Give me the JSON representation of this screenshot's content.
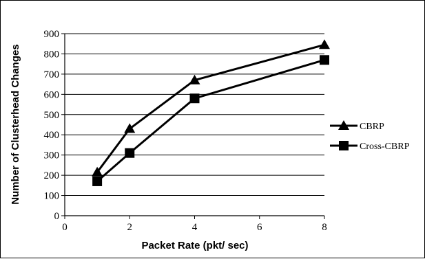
{
  "chart_data": {
    "type": "line",
    "xlabel": "Packet Rate (pkt/ sec)",
    "ylabel": "Number of Clusterhead Changes",
    "xlim": [
      0,
      8
    ],
    "ylim": [
      0,
      900
    ],
    "xticks": [
      0,
      2,
      4,
      6,
      8
    ],
    "yticks": [
      0,
      100,
      200,
      300,
      400,
      500,
      600,
      700,
      800,
      900
    ],
    "grid": "horizontal",
    "legend_position": "right",
    "series": [
      {
        "name": "CBRP",
        "marker": "triangle",
        "color": "#000000",
        "points": [
          {
            "x": 1,
            "y": 215
          },
          {
            "x": 2,
            "y": 430
          },
          {
            "x": 4,
            "y": 670
          },
          {
            "x": 8,
            "y": 845
          }
        ]
      },
      {
        "name": "Cross-CBRP",
        "marker": "square",
        "color": "#000000",
        "points": [
          {
            "x": 1,
            "y": 170
          },
          {
            "x": 2,
            "y": 310
          },
          {
            "x": 4,
            "y": 580
          },
          {
            "x": 8,
            "y": 770
          }
        ]
      }
    ]
  }
}
